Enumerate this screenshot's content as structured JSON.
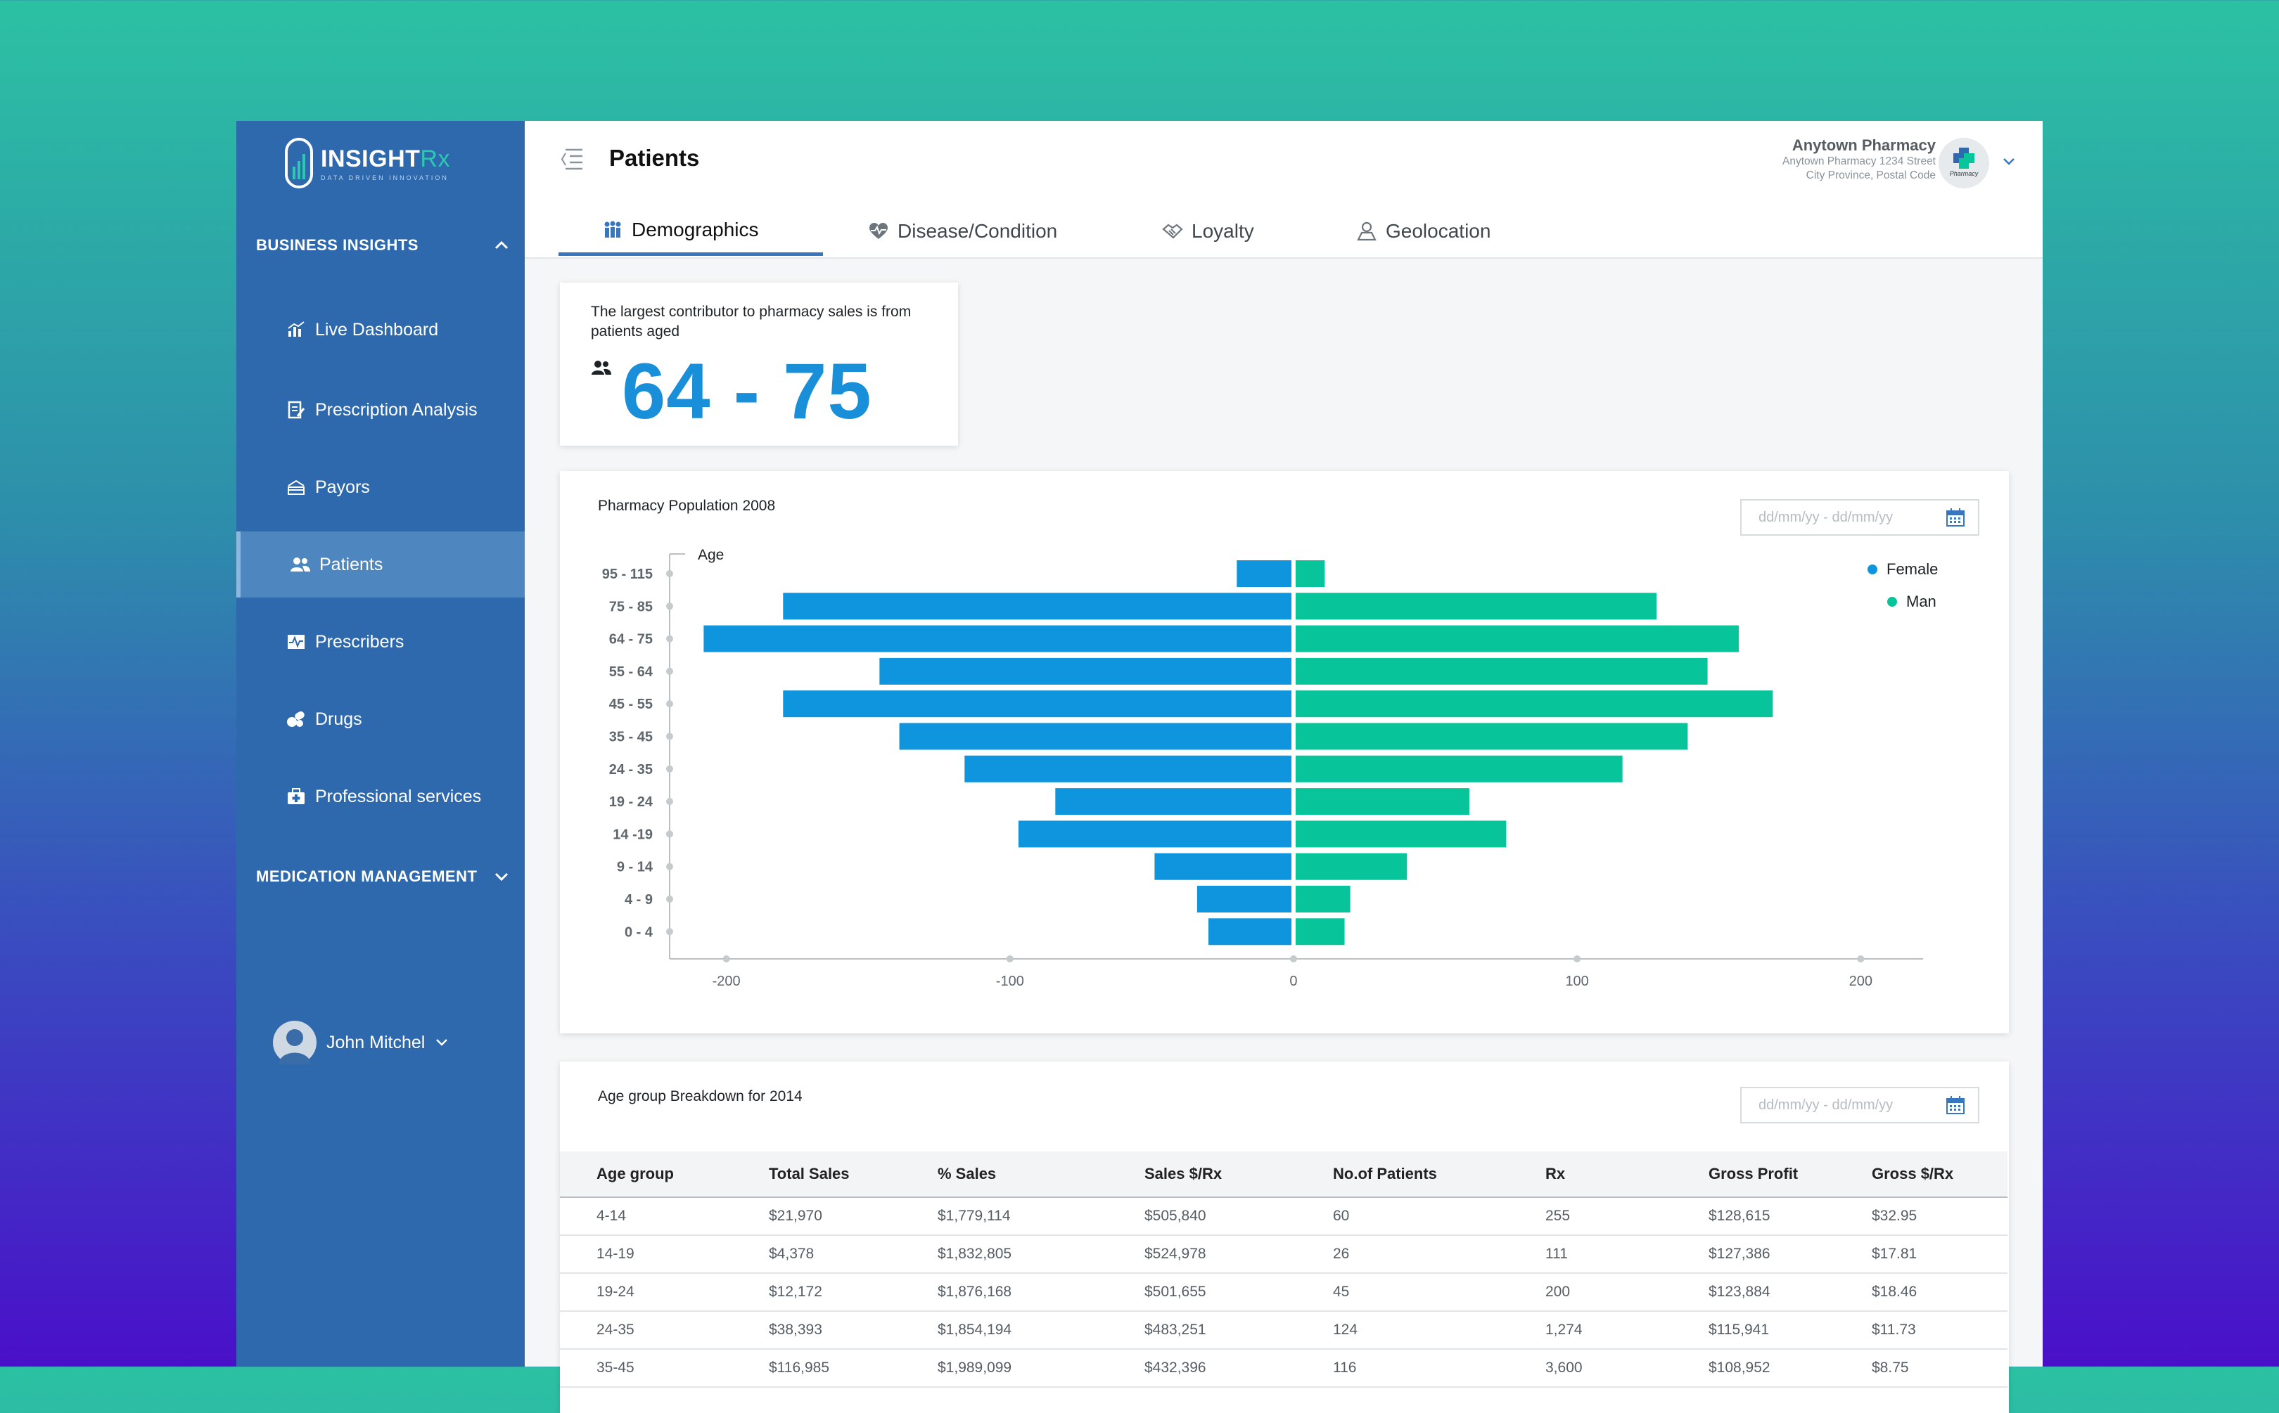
{
  "app": {
    "logo": {
      "brand": "INSIGHT",
      "brand_suffix": "Rx",
      "tagline": "DATA DRIVEN INNOVATION"
    }
  },
  "sidebar": {
    "section_business": "BUSINESS INSIGHTS",
    "items": [
      {
        "label": "Live Dashboard",
        "icon": "bar-chart-icon"
      },
      {
        "label": "Prescription Analysis",
        "icon": "document-edit-icon"
      },
      {
        "label": "Payors",
        "icon": "payment-icon"
      },
      {
        "label": "Patients",
        "icon": "users-icon",
        "active": true
      },
      {
        "label": "Prescribers",
        "icon": "pulse-icon"
      },
      {
        "label": "Drugs",
        "icon": "pills-icon"
      },
      {
        "label": "Professional services",
        "icon": "medical-kit-icon"
      }
    ],
    "section_medication": "MEDICATION MANAGEMENT",
    "user": "John Mitchel"
  },
  "header": {
    "title": "Patients",
    "pharmacy_name": "Anytown Pharmacy",
    "pharmacy_address_1": "Anytown Pharmacy 1234 Street",
    "pharmacy_address_2": "City Province, Postal Code",
    "pharmacy_logo_text": "Pharmacy"
  },
  "tabs": [
    {
      "label": "Demographics",
      "icon": "people-icon",
      "active": true
    },
    {
      "label": "Disease/Condition",
      "icon": "heart-pulse-icon"
    },
    {
      "label": "Loyalty",
      "icon": "handshake-icon"
    },
    {
      "label": "Geolocation",
      "icon": "location-person-icon"
    }
  ],
  "insight": {
    "text": "The largest contributor to pharmacy sales is from patients aged",
    "value": "64 - 75"
  },
  "population_card": {
    "title": "Pharmacy Population 2008",
    "date_placeholder": "dd/mm/yy - dd/mm/yy"
  },
  "breakdown_card": {
    "title": "Age group Breakdown for 2014",
    "date_placeholder": "dd/mm/yy - dd/mm/yy",
    "columns": [
      "Age group",
      "Total Sales",
      "% Sales",
      "Sales $/Rx",
      "No.of Patients",
      "Rx",
      "Gross Profit",
      "Gross $/Rx"
    ],
    "rows": [
      [
        "4-14",
        "$21,970",
        "$1,779,114",
        "$505,840",
        "60",
        "255",
        "$128,615",
        "$32.95"
      ],
      [
        "14-19",
        "$4,378",
        "$1,832,805",
        "$524,978",
        "26",
        "111",
        "$127,386",
        "$17.81"
      ],
      [
        "19-24",
        "$12,172",
        "$1,876,168",
        "$501,655",
        "45",
        "200",
        "$123,884",
        "$18.46"
      ],
      [
        "24-35",
        "$38,393",
        "$1,854,194",
        "$483,251",
        "124",
        "1,274",
        "$115,941",
        "$11.73"
      ],
      [
        "35-45",
        "$116,985",
        "$1,989,099",
        "$432,396",
        "116",
        "3,600",
        "$108,952",
        "$8.75"
      ]
    ]
  },
  "chart_data": {
    "type": "bar",
    "orientation": "horizontal",
    "title": "Pharmacy Population 2008",
    "ylabel": "Age",
    "categories": [
      "95 - 115",
      "75 - 85",
      "64 - 75",
      "55 - 64",
      "45 - 55",
      "35 - 45",
      "24 - 35",
      "19 - 24",
      "14 -19",
      "9 - 14",
      "4 - 9",
      "0 - 4"
    ],
    "series": [
      {
        "name": "Female",
        "color": "#0f95dd",
        "values": [
          -20,
          -180,
          -208,
          -146,
          -180,
          -139,
          -116,
          -84,
          -97,
          -49,
          -34,
          -30
        ]
      },
      {
        "name": "Man",
        "color": "#08c49b",
        "values": [
          11,
          128,
          157,
          146,
          169,
          139,
          116,
          62,
          75,
          40,
          20,
          18
        ]
      }
    ],
    "xlim": [
      -220,
      222
    ],
    "xticks": [
      -200,
      -100,
      0,
      100,
      200
    ],
    "legend_position": "top-right"
  }
}
